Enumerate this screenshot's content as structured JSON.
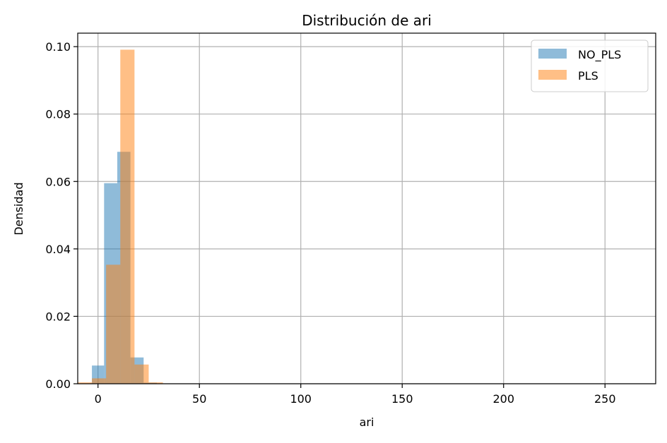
{
  "chart_data": {
    "type": "histogram",
    "title": "Distribución de ari",
    "xlabel": "ari",
    "ylabel": "Densidad",
    "xlim": [
      -10,
      275
    ],
    "ylim": [
      0,
      0.104
    ],
    "x_ticks": [
      0,
      50,
      100,
      150,
      200,
      250
    ],
    "y_ticks": [
      0.0,
      0.02,
      0.04,
      0.06,
      0.08,
      0.1
    ],
    "x_tick_labels": [
      "0",
      "50",
      "100",
      "150",
      "200",
      "250"
    ],
    "y_tick_labels": [
      "0.00",
      "0.02",
      "0.04",
      "0.06",
      "0.08",
      "0.10"
    ],
    "grid": true,
    "legend_position": "top-right",
    "series": [
      {
        "name": "NO_PLS",
        "color": "#1f77b4",
        "alpha": 0.5,
        "bins": [
          {
            "x0": -3,
            "x1": 3,
            "density": 0.0054
          },
          {
            "x0": 3,
            "x1": 9.5,
            "density": 0.0595
          },
          {
            "x0": 9.5,
            "x1": 16,
            "density": 0.0688
          },
          {
            "x0": 16,
            "x1": 22.5,
            "density": 0.0078
          },
          {
            "x0": 22.5,
            "x1": 29,
            "density": 0.0003
          },
          {
            "x0": 29,
            "x1": 275,
            "density": 0.0
          }
        ]
      },
      {
        "name": "PLS",
        "color": "#ff7f0e",
        "alpha": 0.5,
        "bins": [
          {
            "x0": -10,
            "x1": -3,
            "density": 0.0004
          },
          {
            "x0": -3,
            "x1": 4,
            "density": 0.0016
          },
          {
            "x0": 4,
            "x1": 11,
            "density": 0.0353
          },
          {
            "x0": 11,
            "x1": 18,
            "density": 0.0991
          },
          {
            "x0": 18,
            "x1": 25,
            "density": 0.0057
          },
          {
            "x0": 25,
            "x1": 32,
            "density": 0.0004
          }
        ]
      }
    ]
  }
}
